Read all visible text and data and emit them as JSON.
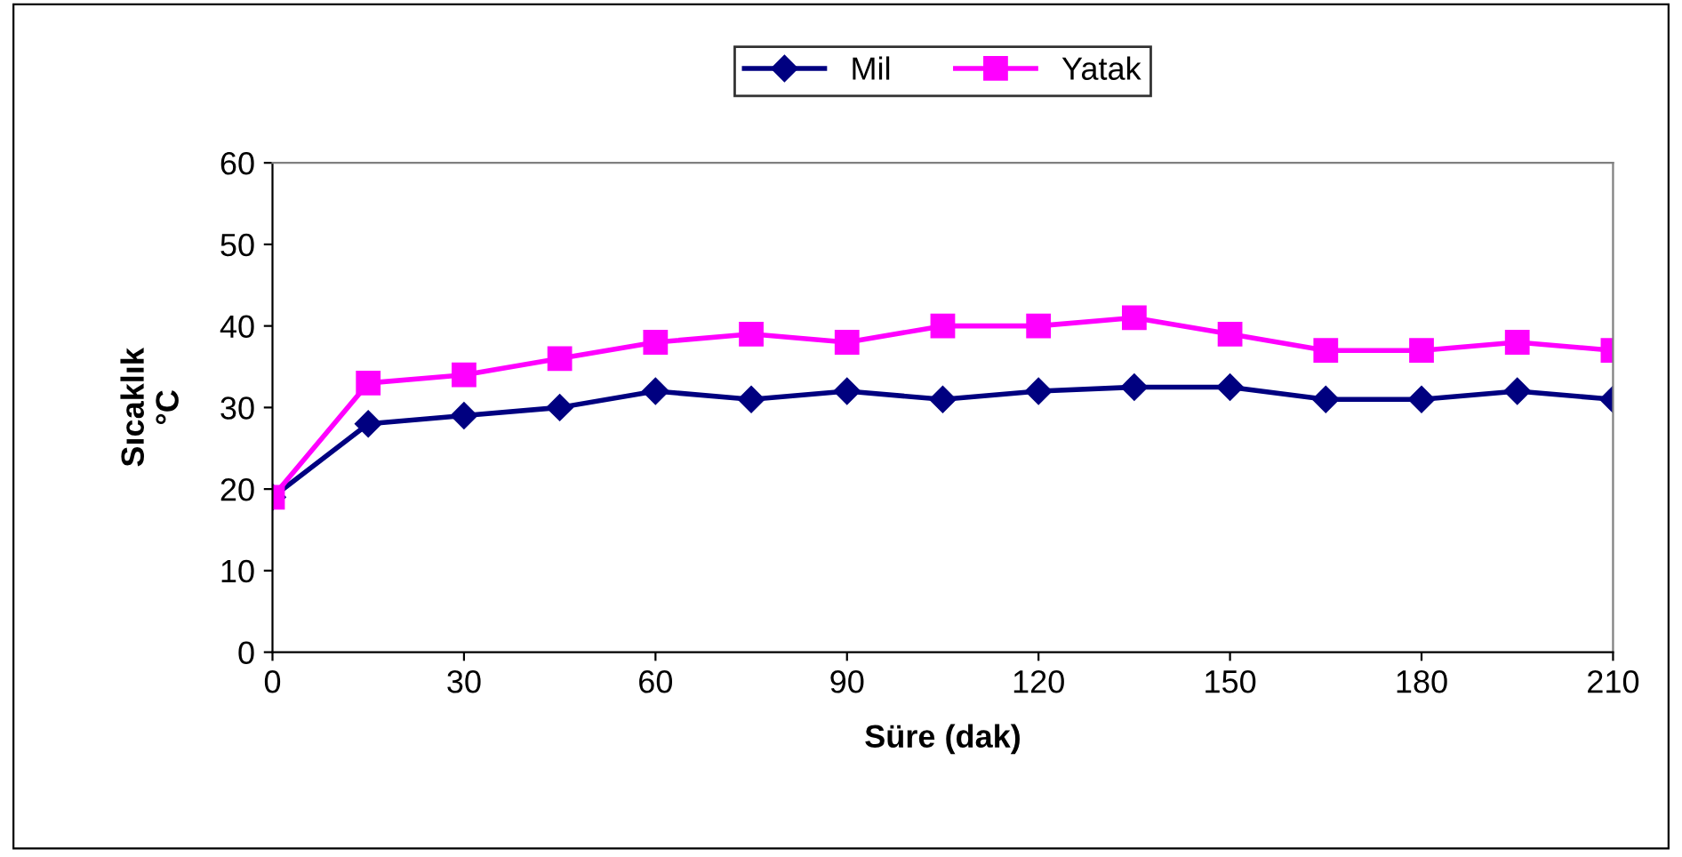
{
  "chart_data": {
    "type": "line",
    "xlabel": "Süre (dak)",
    "ylabel": "Sıcaklık\n°C",
    "x": [
      0,
      15,
      30,
      45,
      60,
      75,
      90,
      105,
      120,
      135,
      150,
      165,
      180,
      195,
      210
    ],
    "series": [
      {
        "name": "Mil",
        "color": "#000080",
        "marker": "diamond",
        "values": [
          19,
          28,
          29,
          30,
          32,
          31,
          32,
          31,
          32,
          32.5,
          32.5,
          31,
          31,
          32,
          31
        ]
      },
      {
        "name": "Yatak",
        "color": "#ff00ff",
        "marker": "square",
        "values": [
          19,
          33,
          34,
          36,
          38,
          39,
          38,
          40,
          40,
          41,
          39,
          37,
          37,
          38,
          37
        ]
      }
    ],
    "xlim": [
      0,
      210
    ],
    "xticks": [
      0,
      30,
      60,
      90,
      120,
      150,
      180,
      210
    ],
    "ylim": [
      0,
      60
    ],
    "yticks": [
      0,
      10,
      20,
      30,
      40,
      50,
      60
    ],
    "grid": false,
    "legend": "top",
    "line_style": "solid"
  }
}
